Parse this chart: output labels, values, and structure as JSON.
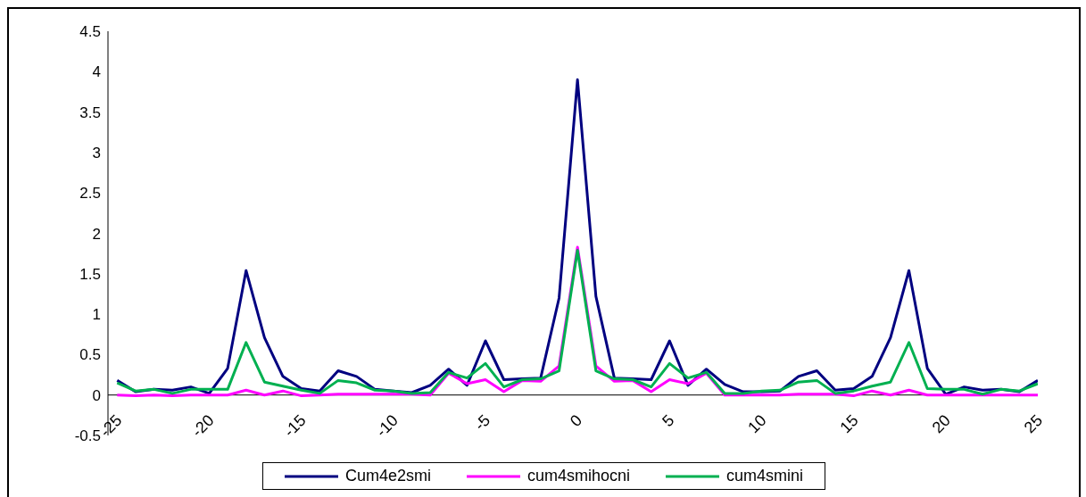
{
  "chart_data": {
    "type": "line",
    "x": [
      -25,
      -24,
      -23,
      -22,
      -21,
      -20,
      -19,
      -18,
      -17,
      -16,
      -15,
      -14,
      -13,
      -12,
      -11,
      -10,
      -9,
      -8,
      -7,
      -6,
      -5,
      -4,
      -3,
      -2,
      -1,
      0,
      1,
      2,
      3,
      4,
      5,
      6,
      7,
      8,
      9,
      10,
      11,
      12,
      13,
      14,
      15,
      16,
      17,
      18,
      19,
      20,
      21,
      22,
      23,
      24,
      25
    ],
    "series": [
      {
        "name": "Cum4e2smi",
        "color": "#000080",
        "values": [
          0.18,
          0.04,
          0.07,
          0.06,
          0.1,
          0.02,
          0.33,
          1.54,
          0.71,
          0.23,
          0.08,
          0.05,
          0.3,
          0.23,
          0.07,
          0.05,
          0.03,
          0.12,
          0.32,
          0.12,
          0.67,
          0.19,
          0.2,
          0.21,
          1.2,
          3.9,
          1.22,
          0.21,
          0.2,
          0.19,
          0.67,
          0.12,
          0.32,
          0.13,
          0.04,
          0.04,
          0.05,
          0.23,
          0.3,
          0.06,
          0.08,
          0.23,
          0.71,
          1.54,
          0.33,
          0.01,
          0.1,
          0.06,
          0.07,
          0.04,
          0.18
        ]
      },
      {
        "name": "cum4smihocni",
        "color": "#ff00ff",
        "values": [
          0,
          -0.01,
          0,
          -0.01,
          0,
          0,
          0,
          0.06,
          0,
          0.05,
          -0.01,
          0,
          0.01,
          0.01,
          0.01,
          0.01,
          0.01,
          0,
          0.27,
          0.14,
          0.19,
          0.04,
          0.18,
          0.17,
          0.36,
          1.83,
          0.36,
          0.17,
          0.18,
          0.04,
          0.19,
          0.14,
          0.27,
          0,
          0,
          0,
          0,
          0.01,
          0.01,
          0.01,
          -0.01,
          0.05,
          0,
          0.06,
          0,
          0,
          0,
          0,
          0,
          0,
          0
        ]
      },
      {
        "name": "cum4smini",
        "color": "#00b050",
        "values": [
          0.15,
          0.05,
          0.07,
          0.02,
          0.07,
          0.07,
          0.07,
          0.65,
          0.16,
          0.11,
          0.06,
          0.02,
          0.18,
          0.15,
          0.06,
          0.05,
          0.02,
          0.03,
          0.28,
          0.21,
          0.39,
          0.1,
          0.19,
          0.2,
          0.3,
          1.79,
          0.3,
          0.2,
          0.19,
          0.1,
          0.39,
          0.21,
          0.28,
          0.02,
          0.02,
          0.05,
          0.06,
          0.16,
          0.18,
          0.02,
          0.05,
          0.11,
          0.16,
          0.65,
          0.08,
          0.07,
          0.07,
          0.01,
          0.07,
          0.05,
          0.14
        ]
      }
    ],
    "xlim": [
      -25.5,
      25
    ],
    "xticks": [
      -25,
      -20,
      -15,
      -10,
      -5,
      0,
      5,
      10,
      15,
      20,
      25
    ],
    "ylim": [
      -0.5,
      4.5
    ],
    "yticks": [
      -0.5,
      0,
      0.5,
      1,
      1.5,
      2,
      2.5,
      3,
      3.5,
      4,
      4.5
    ],
    "grid": false,
    "legend": "bottom",
    "marker": "none",
    "line_style": "solid"
  }
}
